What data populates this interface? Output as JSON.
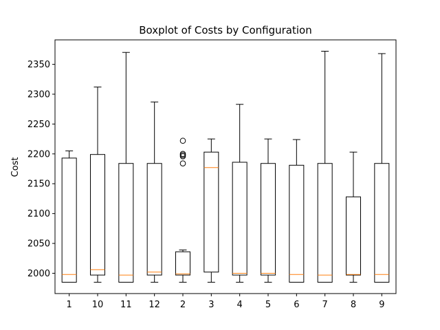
{
  "chart_data": {
    "type": "boxplot",
    "title": "Boxplot of Costs by Configuration",
    "xlabel": "",
    "ylabel": "Cost",
    "ylim": [
      1966,
      2391
    ],
    "yticks": [
      2000,
      2050,
      2100,
      2150,
      2200,
      2250,
      2300,
      2350
    ],
    "grid": false,
    "colors": {
      "box": "#000000",
      "median": "#ff7f0e",
      "flier": "#000000"
    },
    "categories": [
      "1",
      "10",
      "11",
      "12",
      "2",
      "3",
      "4",
      "5",
      "6",
      "7",
      "8",
      "9"
    ],
    "boxes": [
      {
        "label": "1",
        "whislo": 1985,
        "q1": 1985,
        "med": 1998,
        "q3": 2193,
        "whishi": 2205,
        "fliers": []
      },
      {
        "label": "10",
        "whislo": 1985,
        "q1": 1997,
        "med": 2006,
        "q3": 2199,
        "whishi": 2312,
        "fliers": []
      },
      {
        "label": "11",
        "whislo": 1985,
        "q1": 1985,
        "med": 1997,
        "q3": 2184,
        "whishi": 2370,
        "fliers": []
      },
      {
        "label": "12",
        "whislo": 1985,
        "q1": 1997,
        "med": 2002,
        "q3": 2184,
        "whishi": 2287,
        "fliers": []
      },
      {
        "label": "2",
        "whislo": 1985,
        "q1": 1997,
        "med": 1999,
        "q3": 2036,
        "whishi": 2039,
        "fliers": [
          2222,
          2200,
          2198,
          2196,
          2184
        ]
      },
      {
        "label": "3",
        "whislo": 1985,
        "q1": 2002,
        "med": 2177,
        "q3": 2203,
        "whishi": 2225,
        "fliers": []
      },
      {
        "label": "4",
        "whislo": 1985,
        "q1": 1997,
        "med": 2000,
        "q3": 2186,
        "whishi": 2283,
        "fliers": []
      },
      {
        "label": "5",
        "whislo": 1985,
        "q1": 1997,
        "med": 2000,
        "q3": 2184,
        "whishi": 2225,
        "fliers": []
      },
      {
        "label": "6",
        "whislo": 1985,
        "q1": 1985,
        "med": 1998,
        "q3": 2181,
        "whishi": 2224,
        "fliers": []
      },
      {
        "label": "7",
        "whislo": 1985,
        "q1": 1985,
        "med": 1997,
        "q3": 2184,
        "whishi": 2372,
        "fliers": []
      },
      {
        "label": "8",
        "whislo": 1985,
        "q1": 1997,
        "med": 1998,
        "q3": 2128,
        "whishi": 2203,
        "fliers": []
      },
      {
        "label": "9",
        "whislo": 1985,
        "q1": 1985,
        "med": 1998,
        "q3": 2184,
        "whishi": 2368,
        "fliers": []
      }
    ]
  }
}
